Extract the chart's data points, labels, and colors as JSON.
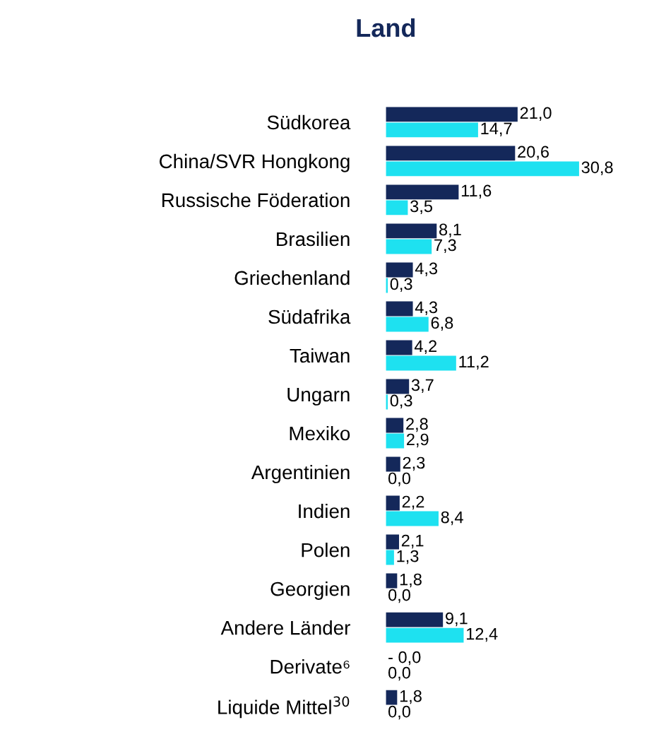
{
  "chart_data": {
    "type": "bar",
    "orientation": "horizontal",
    "title": "Land",
    "categories": [
      "Südkorea",
      "China/SVR Hongkong",
      "Russische Föderation",
      "Brasilien",
      "Griechenland",
      "Südafrika",
      "Taiwan",
      "Ungarn",
      "Mexiko",
      "Argentinien",
      "Indien",
      "Polen",
      "Georgien",
      "Andere Länder",
      "Derivate⁶",
      "Liquide Mittel$^{30}$"
    ],
    "series": [
      {
        "color": "#14285a",
        "values": [
          21.0,
          20.6,
          11.6,
          8.1,
          4.3,
          4.3,
          4.2,
          3.7,
          2.8,
          2.3,
          2.2,
          2.1,
          1.8,
          9.1,
          -0.0,
          1.8
        ],
        "value_labels": [
          "21,0",
          "20,6",
          "11,6",
          "8,1",
          "4,3",
          "4,3",
          "4,2",
          "3,7",
          "2,8",
          "2,3",
          "2,2",
          "2,1",
          "1,8",
          "9,1",
          "- 0,0",
          "1,8"
        ]
      },
      {
        "color": "#1ee1f0",
        "values": [
          14.7,
          30.8,
          3.5,
          7.3,
          0.3,
          6.8,
          11.2,
          0.3,
          2.9,
          0.0,
          8.4,
          1.3,
          0.0,
          12.4,
          0.0,
          0.0
        ],
        "value_labels": [
          "14,7",
          "30,8",
          "3,5",
          "7,3",
          "0,3",
          "6,8",
          "11,2",
          "0,3",
          "2,9",
          "0,0",
          "8,4",
          "1,3",
          "0,0",
          "12,4",
          "0,0",
          "0,0"
        ]
      }
    ],
    "grid": false,
    "legend": false
  }
}
